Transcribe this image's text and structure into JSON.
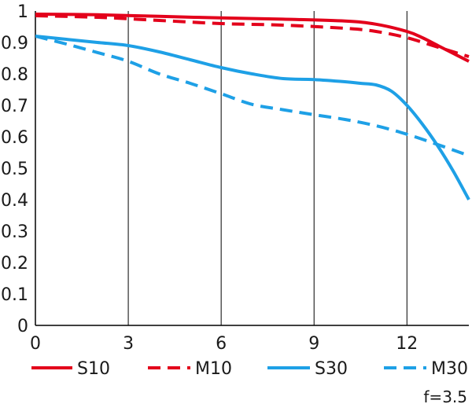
{
  "chart_data": {
    "type": "line",
    "title": "",
    "xlabel": "",
    "ylabel": "",
    "xlim": [
      0,
      14
    ],
    "ylim": [
      0,
      1
    ],
    "x_ticks": [
      0,
      3,
      6,
      9,
      12
    ],
    "y_ticks": [
      0,
      0.1,
      0.2,
      0.3,
      0.4,
      0.5,
      0.6,
      0.7,
      0.8,
      0.9,
      1
    ],
    "x_tick_labels": [
      "0",
      "3",
      "6",
      "9",
      "12"
    ],
    "y_tick_labels": [
      "0",
      "0.1",
      "0.2",
      "0.3",
      "0.4",
      "0.5",
      "0.6",
      "0.7",
      "0.8",
      "0.9",
      "1"
    ],
    "grid": "vertical",
    "legend_position": "bottom",
    "note": "f=3.5",
    "series": [
      {
        "name": "S10",
        "color": "#e3001b",
        "dash": "solid",
        "x": [
          0,
          2,
          4,
          6,
          8,
          10,
          11,
          12,
          12.5,
          13,
          13.5,
          14
        ],
        "y": [
          0.99,
          0.988,
          0.983,
          0.978,
          0.974,
          0.968,
          0.958,
          0.935,
          0.915,
          0.89,
          0.865,
          0.84
        ]
      },
      {
        "name": "M10",
        "color": "#e3001b",
        "dash": "dashed",
        "x": [
          0,
          2,
          4,
          6,
          8,
          10,
          11,
          12,
          13,
          14
        ],
        "y": [
          0.985,
          0.98,
          0.97,
          0.96,
          0.955,
          0.945,
          0.935,
          0.915,
          0.885,
          0.855
        ]
      },
      {
        "name": "S30",
        "color": "#1ea0e6",
        "dash": "solid",
        "x": [
          0,
          1,
          2,
          3,
          4,
          5,
          6,
          7,
          8,
          9,
          10,
          10.5,
          11,
          11.5,
          12,
          12.5,
          13,
          13.5,
          14
        ],
        "y": [
          0.92,
          0.91,
          0.9,
          0.89,
          0.87,
          0.845,
          0.82,
          0.8,
          0.785,
          0.782,
          0.775,
          0.77,
          0.765,
          0.745,
          0.7,
          0.64,
          0.57,
          0.49,
          0.4
        ]
      },
      {
        "name": "M30",
        "color": "#1ea0e6",
        "dash": "dashed",
        "x": [
          0,
          1,
          2,
          3,
          4,
          5,
          6,
          7,
          8,
          9,
          10,
          11,
          12,
          13,
          14
        ],
        "y": [
          0.92,
          0.895,
          0.868,
          0.84,
          0.8,
          0.77,
          0.737,
          0.703,
          0.686,
          0.67,
          0.655,
          0.635,
          0.608,
          0.575,
          0.54
        ]
      }
    ]
  }
}
